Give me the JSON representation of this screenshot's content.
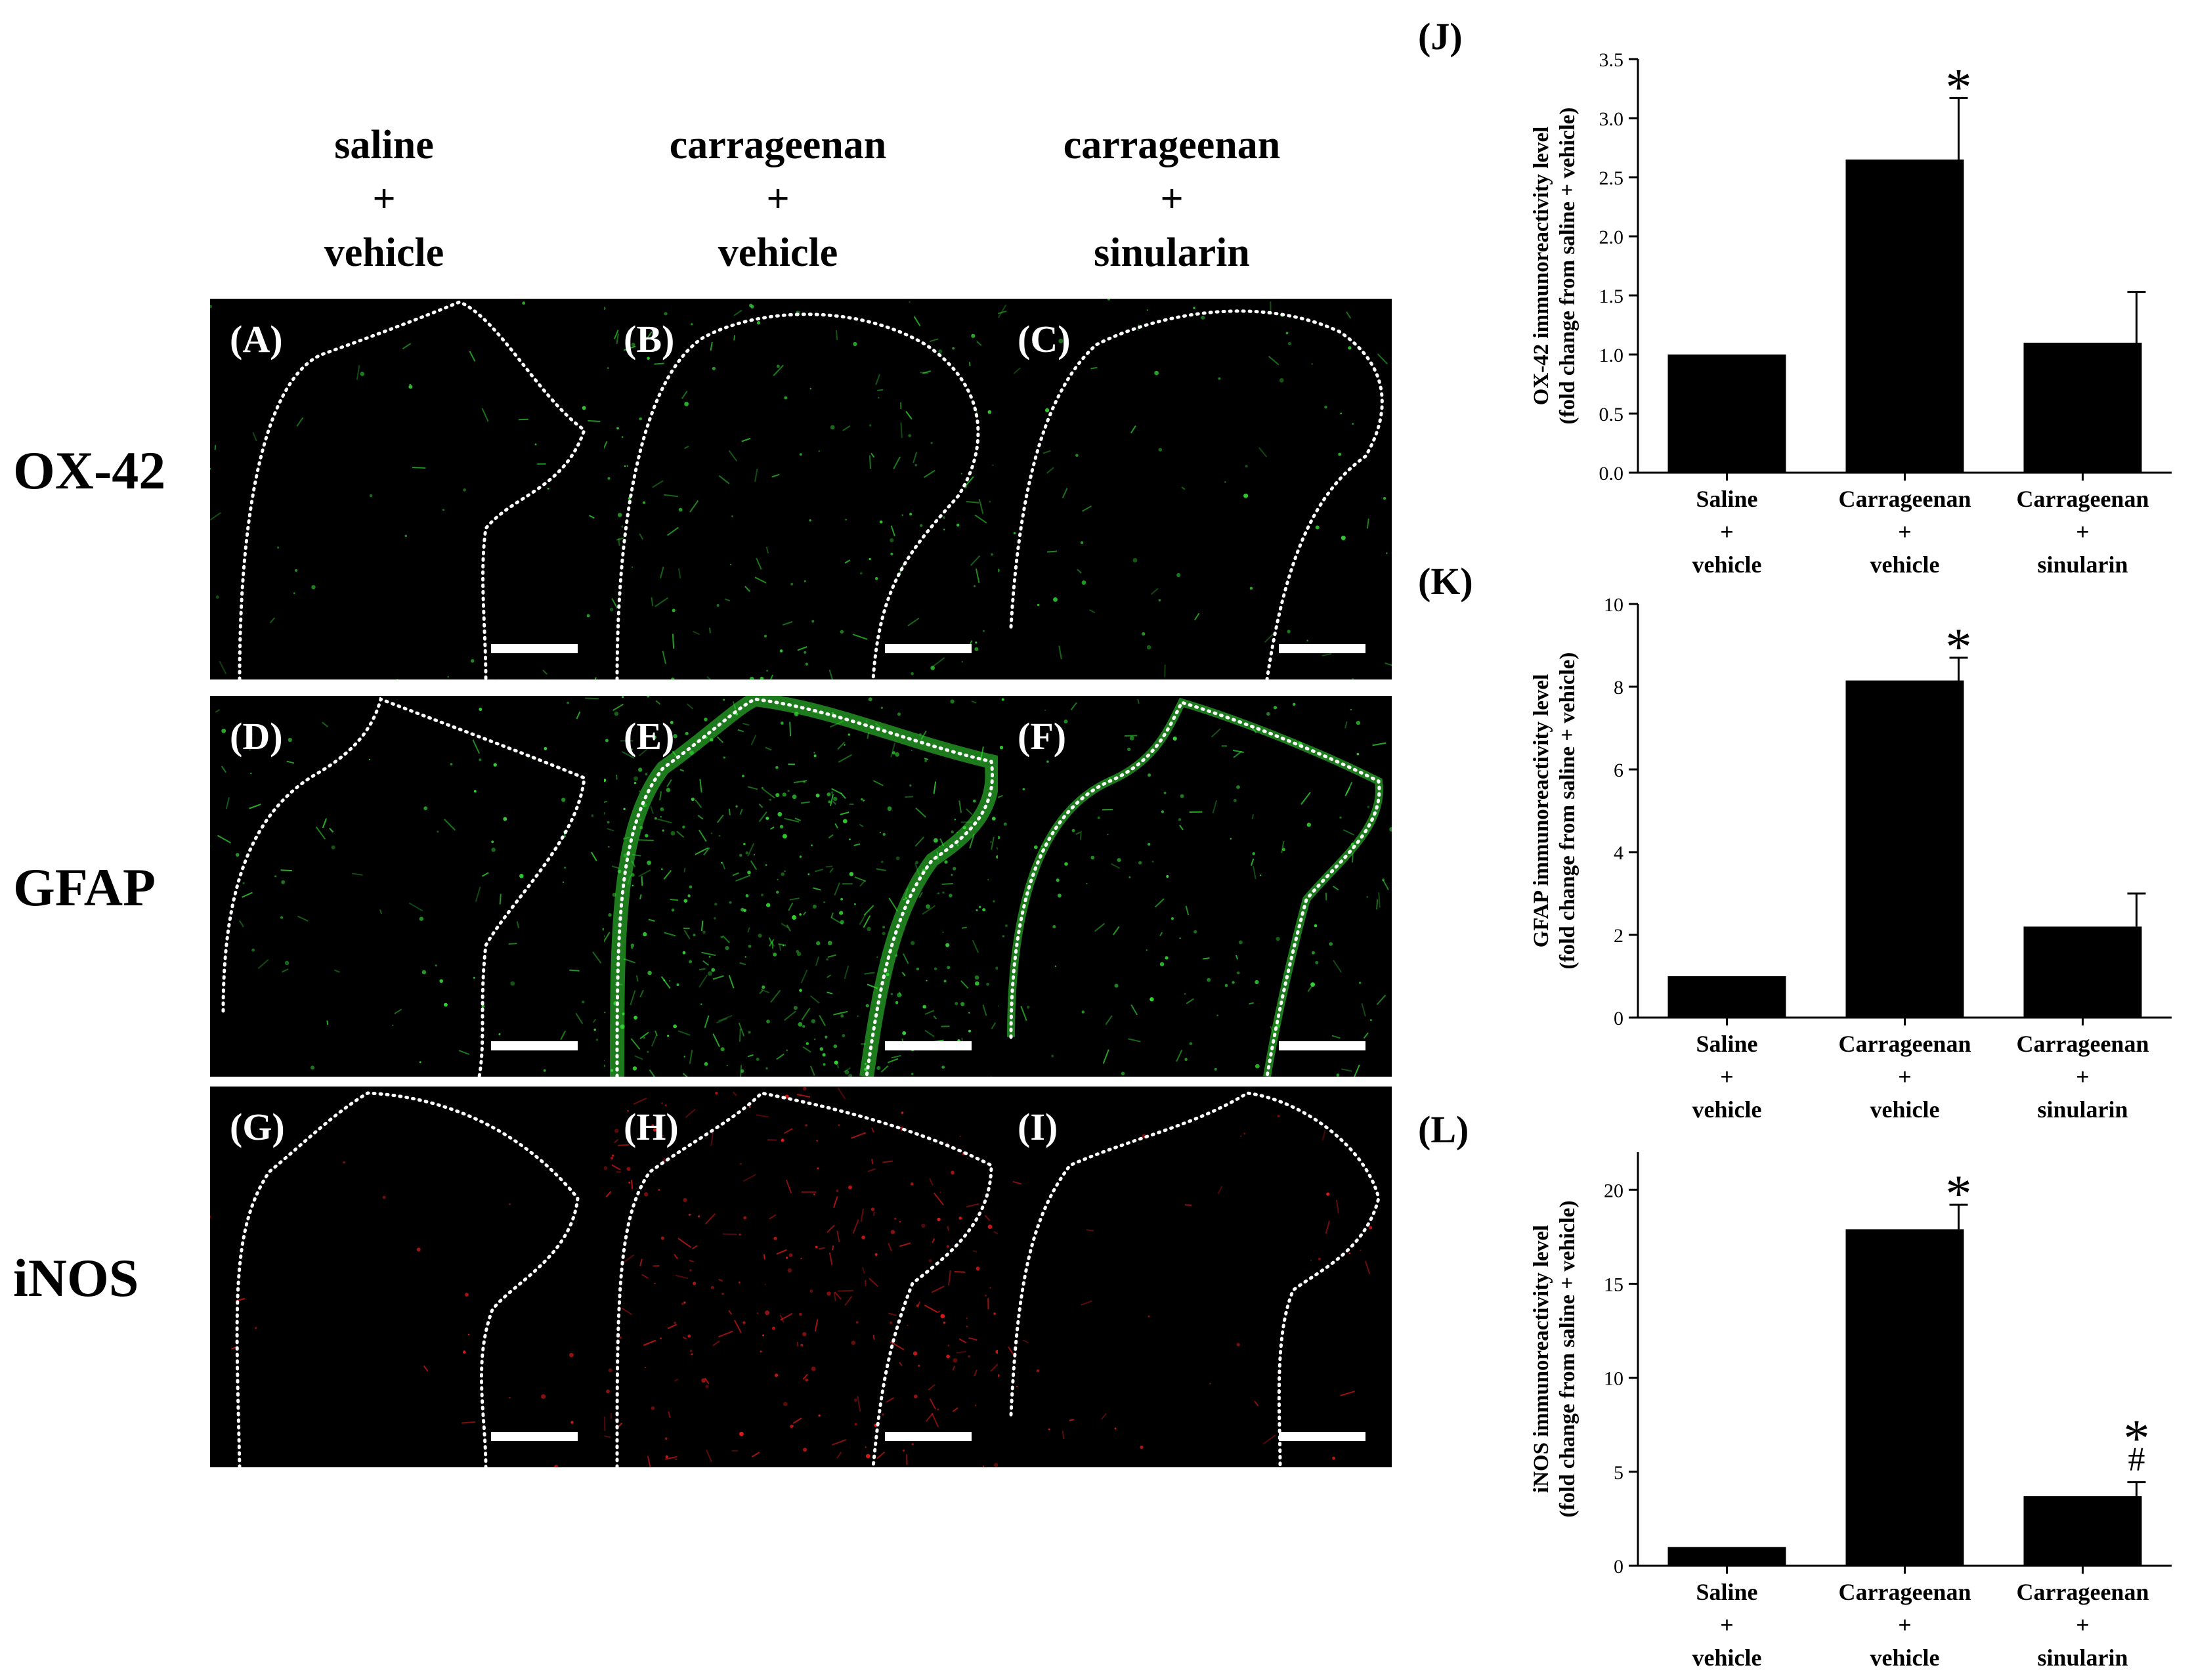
{
  "columns": [
    {
      "line1": "saline",
      "line2": "+",
      "line3": "vehicle"
    },
    {
      "line1": "carrageenan",
      "line2": "+",
      "line3": "vehicle"
    },
    {
      "line1": "carrageenan",
      "line2": "+",
      "line3": "sinularin"
    }
  ],
  "rows": [
    "OX-42",
    "GFAP",
    "iNOS"
  ],
  "panels": [
    [
      "(A)",
      "(B)",
      "(C)"
    ],
    [
      "(D)",
      "(E)",
      "(F)"
    ],
    [
      "(G)",
      "(H)",
      "(I)"
    ]
  ],
  "colors": {
    "ox42": "#2fd22f",
    "gfap": "#35e035",
    "inos": "#e51a1a",
    "bar": "#000000",
    "outline": "#ffffff"
  },
  "chart_data": [
    {
      "type": "bar",
      "panel_label": "(J)",
      "categories": [
        {
          "line1": "Saline",
          "line2": "+",
          "line3": "vehicle"
        },
        {
          "line1": "Carrageenan",
          "line2": "+",
          "line3": "vehicle"
        },
        {
          "line1": "Carrageenan",
          "line2": "+",
          "line3": "sinularin"
        }
      ],
      "values": [
        1.0,
        2.65,
        1.1
      ],
      "errors": [
        0,
        0.52,
        0.43
      ],
      "annotations": [
        [],
        [
          "*"
        ],
        []
      ],
      "ylabel1": "OX-42 immunoreactivity level",
      "ylabel2": "(fold change from saline + vehicle)",
      "ylim": [
        0,
        3.5
      ],
      "yticks": [
        "0.0",
        "0.5",
        "1.0",
        "1.5",
        "2.0",
        "2.5",
        "3.0",
        "3.5"
      ]
    },
    {
      "type": "bar",
      "panel_label": "(K)",
      "categories": [
        {
          "line1": "Saline",
          "line2": "+",
          "line3": "vehicle"
        },
        {
          "line1": "Carrageenan",
          "line2": "+",
          "line3": "vehicle"
        },
        {
          "line1": "Carrageenan",
          "line2": "+",
          "line3": "sinularin"
        }
      ],
      "values": [
        1.0,
        8.15,
        2.2
      ],
      "errors": [
        0,
        0.55,
        0.8
      ],
      "annotations": [
        [],
        [
          "*"
        ],
        []
      ],
      "ylabel1": "GFAP immunoreactivity level",
      "ylabel2": "(fold change from saline + vehicle)",
      "ylim": [
        0,
        10
      ],
      "yticks": [
        "0",
        "2",
        "4",
        "6",
        "8",
        "10"
      ]
    },
    {
      "type": "bar",
      "panel_label": "(L)",
      "categories": [
        {
          "line1": "Saline",
          "line2": "+",
          "line3": "vehicle"
        },
        {
          "line1": "Carrageenan",
          "line2": "+",
          "line3": "vehicle"
        },
        {
          "line1": "Carrageenan",
          "line2": "+",
          "line3": "sinularin"
        }
      ],
      "values": [
        1.0,
        17.9,
        3.7
      ],
      "errors": [
        0,
        1.3,
        0.75
      ],
      "annotations": [
        [],
        [
          "*"
        ],
        [
          "#",
          "*"
        ]
      ],
      "ylabel1": "iNOS immunoreactivity level",
      "ylabel2": "(fold change from saline + vehicle)",
      "ylim": [
        0,
        22
      ],
      "yticks": [
        "0",
        "5",
        "10",
        "15",
        "20"
      ]
    }
  ]
}
